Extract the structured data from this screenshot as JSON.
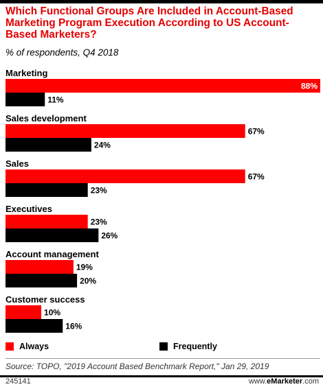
{
  "header": {
    "title": "Which Functional Groups Are Included in Account-Based Marketing Program Execution According to US Account-Based Marketers?",
    "subtitle": "% of respondents, Q4 2018"
  },
  "colors": {
    "always": "#ff0000",
    "frequently": "#000000",
    "title": "#e40000"
  },
  "chart_data": {
    "type": "bar",
    "orientation": "horizontal",
    "categories": [
      "Marketing",
      "Sales development",
      "Sales",
      "Executives",
      "Account management",
      "Customer success"
    ],
    "series": [
      {
        "name": "Always",
        "values": [
          88,
          67,
          67,
          23,
          19,
          10
        ]
      },
      {
        "name": "Frequently",
        "values": [
          11,
          24,
          23,
          26,
          20,
          16
        ]
      }
    ],
    "value_suffix": "%",
    "xlim": [
      0,
      88
    ],
    "legend_position": "bottom"
  },
  "legend": {
    "always_label": "Always",
    "frequently_label": "Frequently"
  },
  "footer": {
    "source": "Source: TOPO, \"2019 Account Based Benchmark Report,\" Jan 29, 2019",
    "id": "245141",
    "brand_prefix": "www.",
    "brand_name": "eMarketer",
    "brand_suffix": ".com"
  }
}
